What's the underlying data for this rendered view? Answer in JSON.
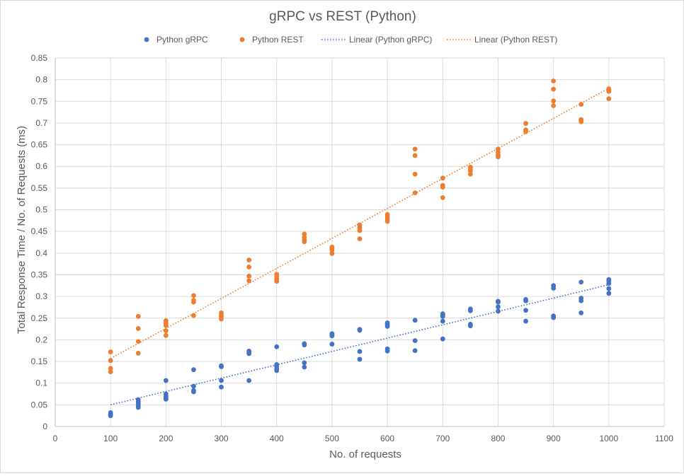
{
  "chart_data": {
    "type": "scatter",
    "title": "gRPC vs REST (Python)",
    "xlabel": "No. of requests",
    "ylabel": "Total Response Time / No. of Requests (ms)",
    "xlim": [
      0,
      1100
    ],
    "ylim": [
      0,
      0.85
    ],
    "xticks": [
      0,
      100,
      200,
      300,
      400,
      500,
      600,
      700,
      800,
      900,
      1000,
      1100
    ],
    "yticks": [
      0,
      0.05,
      0.1,
      0.15,
      0.2,
      0.25,
      0.3,
      0.35,
      0.4,
      0.45,
      0.5,
      0.55,
      0.6,
      0.65,
      0.7,
      0.75,
      0.8,
      0.85
    ],
    "grid": true,
    "legend_position": "top",
    "series": [
      {
        "name": "Python gRPC",
        "color": "#4472c4",
        "points": [
          [
            100,
            0.032
          ],
          [
            100,
            0.028
          ],
          [
            100,
            0.027
          ],
          [
            100,
            0.025
          ],
          [
            150,
            0.062
          ],
          [
            150,
            0.057
          ],
          [
            150,
            0.053
          ],
          [
            150,
            0.048
          ],
          [
            150,
            0.044
          ],
          [
            200,
            0.106
          ],
          [
            200,
            0.075
          ],
          [
            200,
            0.069
          ],
          [
            200,
            0.065
          ],
          [
            200,
            0.063
          ],
          [
            250,
            0.131
          ],
          [
            250,
            0.093
          ],
          [
            250,
            0.083
          ],
          [
            250,
            0.08
          ],
          [
            300,
            0.14
          ],
          [
            300,
            0.138
          ],
          [
            300,
            0.106
          ],
          [
            300,
            0.091
          ],
          [
            350,
            0.174
          ],
          [
            350,
            0.17
          ],
          [
            350,
            0.168
          ],
          [
            350,
            0.106
          ],
          [
            400,
            0.184
          ],
          [
            400,
            0.143
          ],
          [
            400,
            0.139
          ],
          [
            400,
            0.133
          ],
          [
            400,
            0.129
          ],
          [
            450,
            0.191
          ],
          [
            450,
            0.188
          ],
          [
            450,
            0.147
          ],
          [
            450,
            0.137
          ],
          [
            500,
            0.214
          ],
          [
            500,
            0.211
          ],
          [
            500,
            0.209
          ],
          [
            500,
            0.19
          ],
          [
            550,
            0.224
          ],
          [
            550,
            0.222
          ],
          [
            550,
            0.173
          ],
          [
            550,
            0.155
          ],
          [
            600,
            0.239
          ],
          [
            600,
            0.235
          ],
          [
            600,
            0.231
          ],
          [
            600,
            0.179
          ],
          [
            600,
            0.174
          ],
          [
            650,
            0.245
          ],
          [
            650,
            0.198
          ],
          [
            650,
            0.175
          ],
          [
            700,
            0.26
          ],
          [
            700,
            0.257
          ],
          [
            700,
            0.254
          ],
          [
            700,
            0.243
          ],
          [
            700,
            0.202
          ],
          [
            750,
            0.271
          ],
          [
            750,
            0.267
          ],
          [
            750,
            0.236
          ],
          [
            750,
            0.232
          ],
          [
            800,
            0.289
          ],
          [
            800,
            0.287
          ],
          [
            800,
            0.276
          ],
          [
            800,
            0.266
          ],
          [
            850,
            0.293
          ],
          [
            850,
            0.29
          ],
          [
            850,
            0.268
          ],
          [
            850,
            0.243
          ],
          [
            900,
            0.325
          ],
          [
            900,
            0.319
          ],
          [
            900,
            0.255
          ],
          [
            900,
            0.251
          ],
          [
            950,
            0.333
          ],
          [
            950,
            0.296
          ],
          [
            950,
            0.29
          ],
          [
            950,
            0.262
          ],
          [
            1000,
            0.339
          ],
          [
            1000,
            0.335
          ],
          [
            1000,
            0.33
          ],
          [
            1000,
            0.318
          ],
          [
            1000,
            0.307
          ]
        ],
        "trendline": {
          "name": "Linear (Python gRPC)",
          "from": [
            100,
            0.05
          ],
          "to": [
            1000,
            0.327
          ]
        }
      },
      {
        "name": "Python REST",
        "color": "#ed7d31",
        "points": [
          [
            100,
            0.172
          ],
          [
            100,
            0.152
          ],
          [
            100,
            0.134
          ],
          [
            100,
            0.126
          ],
          [
            150,
            0.254
          ],
          [
            150,
            0.226
          ],
          [
            150,
            0.196
          ],
          [
            150,
            0.169
          ],
          [
            200,
            0.244
          ],
          [
            200,
            0.238
          ],
          [
            200,
            0.233
          ],
          [
            200,
            0.221
          ],
          [
            200,
            0.21
          ],
          [
            250,
            0.302
          ],
          [
            250,
            0.291
          ],
          [
            250,
            0.287
          ],
          [
            250,
            0.256
          ],
          [
            300,
            0.262
          ],
          [
            300,
            0.257
          ],
          [
            300,
            0.253
          ],
          [
            300,
            0.248
          ],
          [
            350,
            0.384
          ],
          [
            350,
            0.368
          ],
          [
            350,
            0.347
          ],
          [
            350,
            0.336
          ],
          [
            400,
            0.351
          ],
          [
            400,
            0.346
          ],
          [
            400,
            0.34
          ],
          [
            400,
            0.335
          ],
          [
            450,
            0.444
          ],
          [
            450,
            0.437
          ],
          [
            450,
            0.431
          ],
          [
            450,
            0.426
          ],
          [
            500,
            0.414
          ],
          [
            500,
            0.41
          ],
          [
            500,
            0.407
          ],
          [
            500,
            0.399
          ],
          [
            550,
            0.465
          ],
          [
            550,
            0.459
          ],
          [
            550,
            0.452
          ],
          [
            550,
            0.433
          ],
          [
            600,
            0.489
          ],
          [
            600,
            0.483
          ],
          [
            600,
            0.478
          ],
          [
            600,
            0.473
          ],
          [
            650,
            0.64
          ],
          [
            650,
            0.625
          ],
          [
            650,
            0.582
          ],
          [
            650,
            0.539
          ],
          [
            700,
            0.573
          ],
          [
            700,
            0.556
          ],
          [
            700,
            0.552
          ],
          [
            700,
            0.528
          ],
          [
            750,
            0.598
          ],
          [
            750,
            0.594
          ],
          [
            750,
            0.59
          ],
          [
            750,
            0.582
          ],
          [
            800,
            0.64
          ],
          [
            800,
            0.633
          ],
          [
            800,
            0.626
          ],
          [
            800,
            0.622
          ],
          [
            850,
            0.699
          ],
          [
            850,
            0.684
          ],
          [
            850,
            0.68
          ],
          [
            900,
            0.797
          ],
          [
            900,
            0.778
          ],
          [
            900,
            0.751
          ],
          [
            900,
            0.74
          ],
          [
            950,
            0.743
          ],
          [
            950,
            0.708
          ],
          [
            950,
            0.703
          ],
          [
            1000,
            0.779
          ],
          [
            1000,
            0.776
          ],
          [
            1000,
            0.773
          ],
          [
            1000,
            0.756
          ]
        ],
        "trendline": {
          "name": "Linear (Python REST)",
          "from": [
            100,
            0.157
          ],
          "to": [
            1000,
            0.78
          ]
        }
      }
    ]
  }
}
